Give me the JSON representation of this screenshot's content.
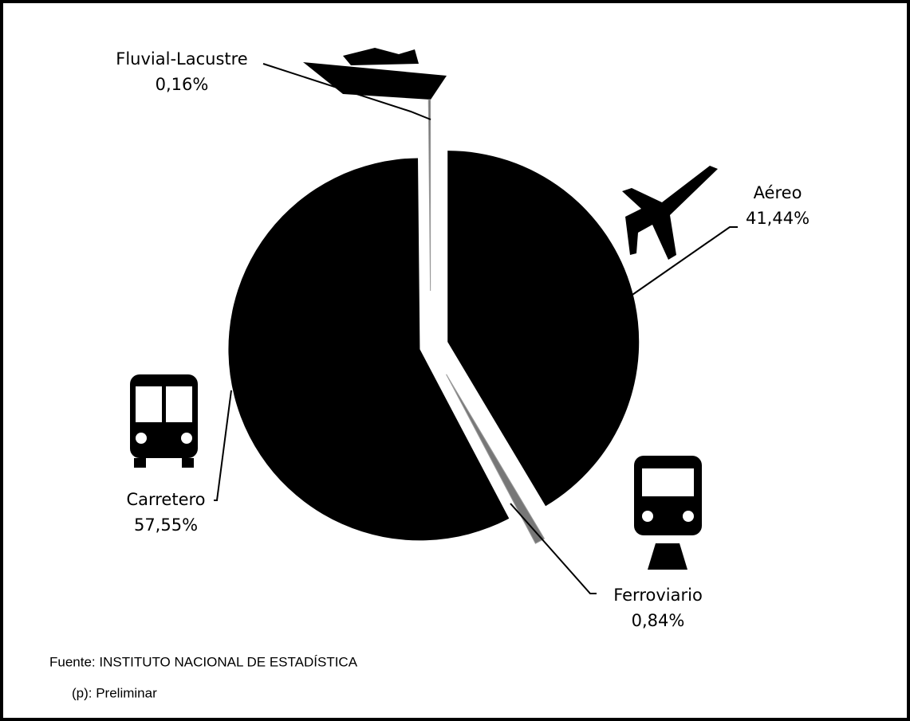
{
  "chart_data": {
    "type": "pie",
    "categories": [
      "Aéreo",
      "Ferroviario",
      "Carretero",
      "Fluvial-Lacustre"
    ],
    "values": [
      41.44,
      0.84,
      57.55,
      0.16
    ],
    "value_labels": [
      "41,44%",
      "0,84%",
      "57,55%",
      "0,16%"
    ],
    "color": "#000000",
    "annotations": [
      "Fuente: INSTITUTO NACIONAL DE ESTADÍSTICA",
      "(p): Preliminar"
    ]
  }
}
